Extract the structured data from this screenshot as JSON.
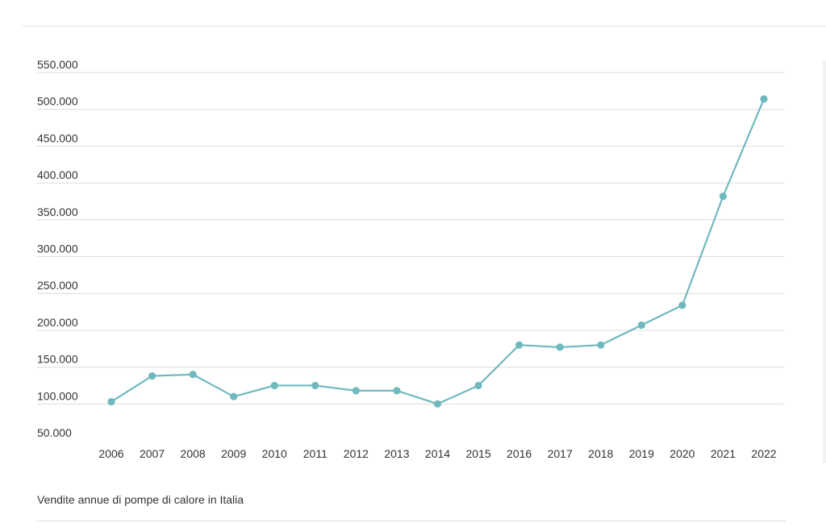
{
  "caption": "Vendite annue di pompe di calore in Italia",
  "colors": {
    "line": "#6fb9be",
    "grid": "#dcdcdc",
    "tick_text": "#333333"
  },
  "chart_data": {
    "type": "line",
    "title": "",
    "xlabel": "",
    "ylabel": "",
    "ylim": [
      50000,
      550000
    ],
    "y_ticks": [
      50000,
      100000,
      150000,
      200000,
      250000,
      300000,
      350000,
      400000,
      450000,
      500000,
      550000
    ],
    "y_tick_labels": [
      "50.000",
      "100.000",
      "150.000",
      "200.000",
      "250.000",
      "300.000",
      "350.000",
      "400.000",
      "450.000",
      "500.000",
      "550.000"
    ],
    "grid": true,
    "legend": "none",
    "categories": [
      "2006",
      "2007",
      "2008",
      "2009",
      "2010",
      "2011",
      "2012",
      "2013",
      "2014",
      "2015",
      "2016",
      "2017",
      "2018",
      "2019",
      "2020",
      "2021",
      "2022"
    ],
    "series": [
      {
        "values": [
          103000,
          138000,
          140000,
          110000,
          125000,
          125000,
          118000,
          118000,
          100000,
          125000,
          180000,
          177000,
          180000,
          207000,
          234000,
          382000,
          514000
        ]
      }
    ]
  }
}
